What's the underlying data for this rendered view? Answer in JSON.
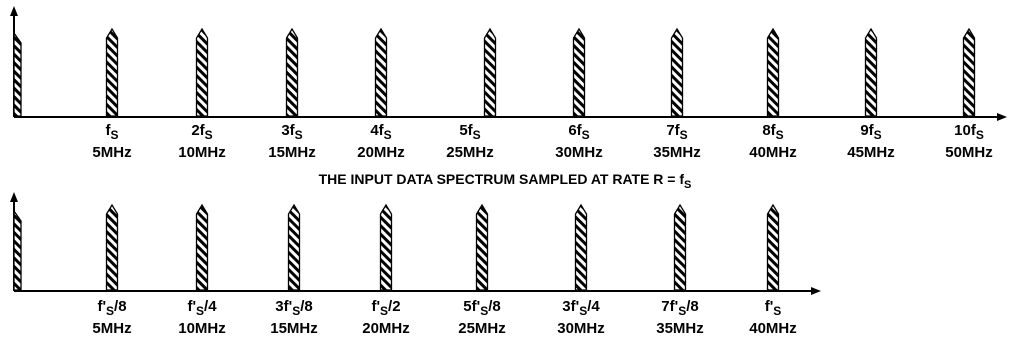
{
  "colors": {
    "ink": "#000000",
    "paper": "#ffffff"
  },
  "top_spectrum": {
    "caption": {
      "text": "THE INPUT DATA SPECTRUM SAMPLED AT RATE R = f",
      "sub": "S"
    },
    "labels": [
      {
        "base": "f",
        "sub": "S",
        "freq": "5MHz"
      },
      {
        "base": "2f",
        "sub": "S",
        "freq": "10MHz"
      },
      {
        "base": "3f",
        "sub": "S",
        "freq": "15MHz"
      },
      {
        "base": "4f",
        "sub": "S",
        "freq": "20MHz"
      },
      {
        "base": "5f",
        "sub": "S",
        "freq": "25MHz"
      },
      {
        "base": "6f",
        "sub": "S",
        "freq": "30MHz"
      },
      {
        "base": "7f",
        "sub": "S",
        "freq": "35MHz"
      },
      {
        "base": "8f",
        "sub": "S",
        "freq": "40MHz"
      },
      {
        "base": "9f",
        "sub": "S",
        "freq": "45MHz"
      },
      {
        "base": "10f",
        "sub": "S",
        "freq": "50MHz"
      }
    ]
  },
  "bottom_spectrum": {
    "labels": [
      {
        "base": "f'",
        "sub": "S",
        "tail": "/8",
        "freq": "5MHz"
      },
      {
        "base": "f'",
        "sub": "S",
        "tail": "/4",
        "freq": "10MHz"
      },
      {
        "base": "3f'",
        "sub": "S",
        "tail": "/8",
        "freq": "15MHz"
      },
      {
        "base": "f'",
        "sub": "S",
        "tail": "/2",
        "freq": "20MHz"
      },
      {
        "base": "5f'",
        "sub": "S",
        "tail": "/8",
        "freq": "25MHz"
      },
      {
        "base": "3f'",
        "sub": "S",
        "tail": "/4",
        "freq": "30MHz"
      },
      {
        "base": "7f'",
        "sub": "S",
        "tail": "/8",
        "freq": "35MHz"
      },
      {
        "base": "f'",
        "sub": "S",
        "tail": "",
        "freq": "40MHz"
      }
    ]
  }
}
